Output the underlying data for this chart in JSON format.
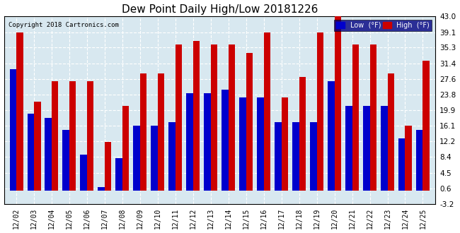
{
  "title": "Dew Point Daily High/Low 20181226",
  "copyright": "Copyright 2018 Cartronics.com",
  "dates": [
    "12/02",
    "12/03",
    "12/04",
    "12/05",
    "12/06",
    "12/07",
    "12/08",
    "12/09",
    "12/10",
    "12/11",
    "12/12",
    "12/13",
    "12/14",
    "12/15",
    "12/16",
    "12/17",
    "12/18",
    "12/19",
    "12/20",
    "12/21",
    "12/22",
    "12/23",
    "12/24",
    "12/25"
  ],
  "low": [
    30,
    19,
    18,
    15,
    9,
    1,
    8,
    16,
    16,
    17,
    24,
    24,
    25,
    23,
    23,
    17,
    17,
    17,
    27,
    21,
    21,
    21,
    13,
    15
  ],
  "high": [
    39,
    22,
    27,
    27,
    27,
    12,
    21,
    29,
    29,
    36,
    37,
    36,
    36,
    34,
    39,
    23,
    28,
    39,
    44,
    36,
    36,
    29,
    16,
    32
  ],
  "yticks": [
    -3.2,
    0.6,
    4.5,
    8.4,
    12.2,
    16.1,
    19.9,
    23.8,
    27.6,
    31.4,
    35.3,
    39.1,
    43.0
  ],
  "ymin": -3.2,
  "ymax": 43.0,
  "low_color": "#0000cc",
  "high_color": "#cc0000",
  "bg_color": "#ffffff",
  "plot_bg_color": "#d8e8f0",
  "grid_color": "#ffffff",
  "bar_width": 0.38
}
